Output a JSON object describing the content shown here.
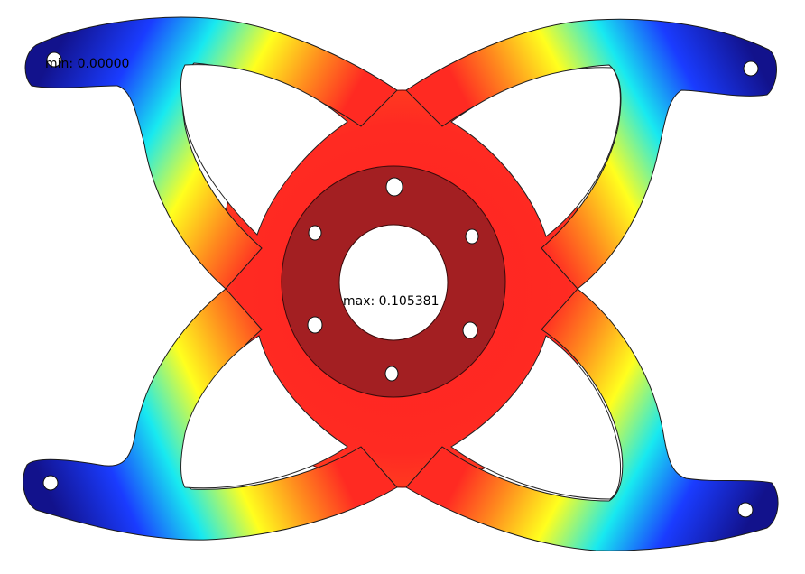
{
  "annotations": {
    "min_label": "min: 0.00000",
    "max_label": "max: 0.105381"
  },
  "colormap": {
    "name": "rainbow",
    "stops": [
      "#12128c",
      "#1a3cff",
      "#18e9f0",
      "#ffff1e",
      "#ff8a1e",
      "#ff2a22"
    ]
  },
  "colors": {
    "hub": "#a31f22",
    "hub_edge": "#3a0a0a",
    "hole": "#ffffff",
    "background": "#ffffff"
  }
}
